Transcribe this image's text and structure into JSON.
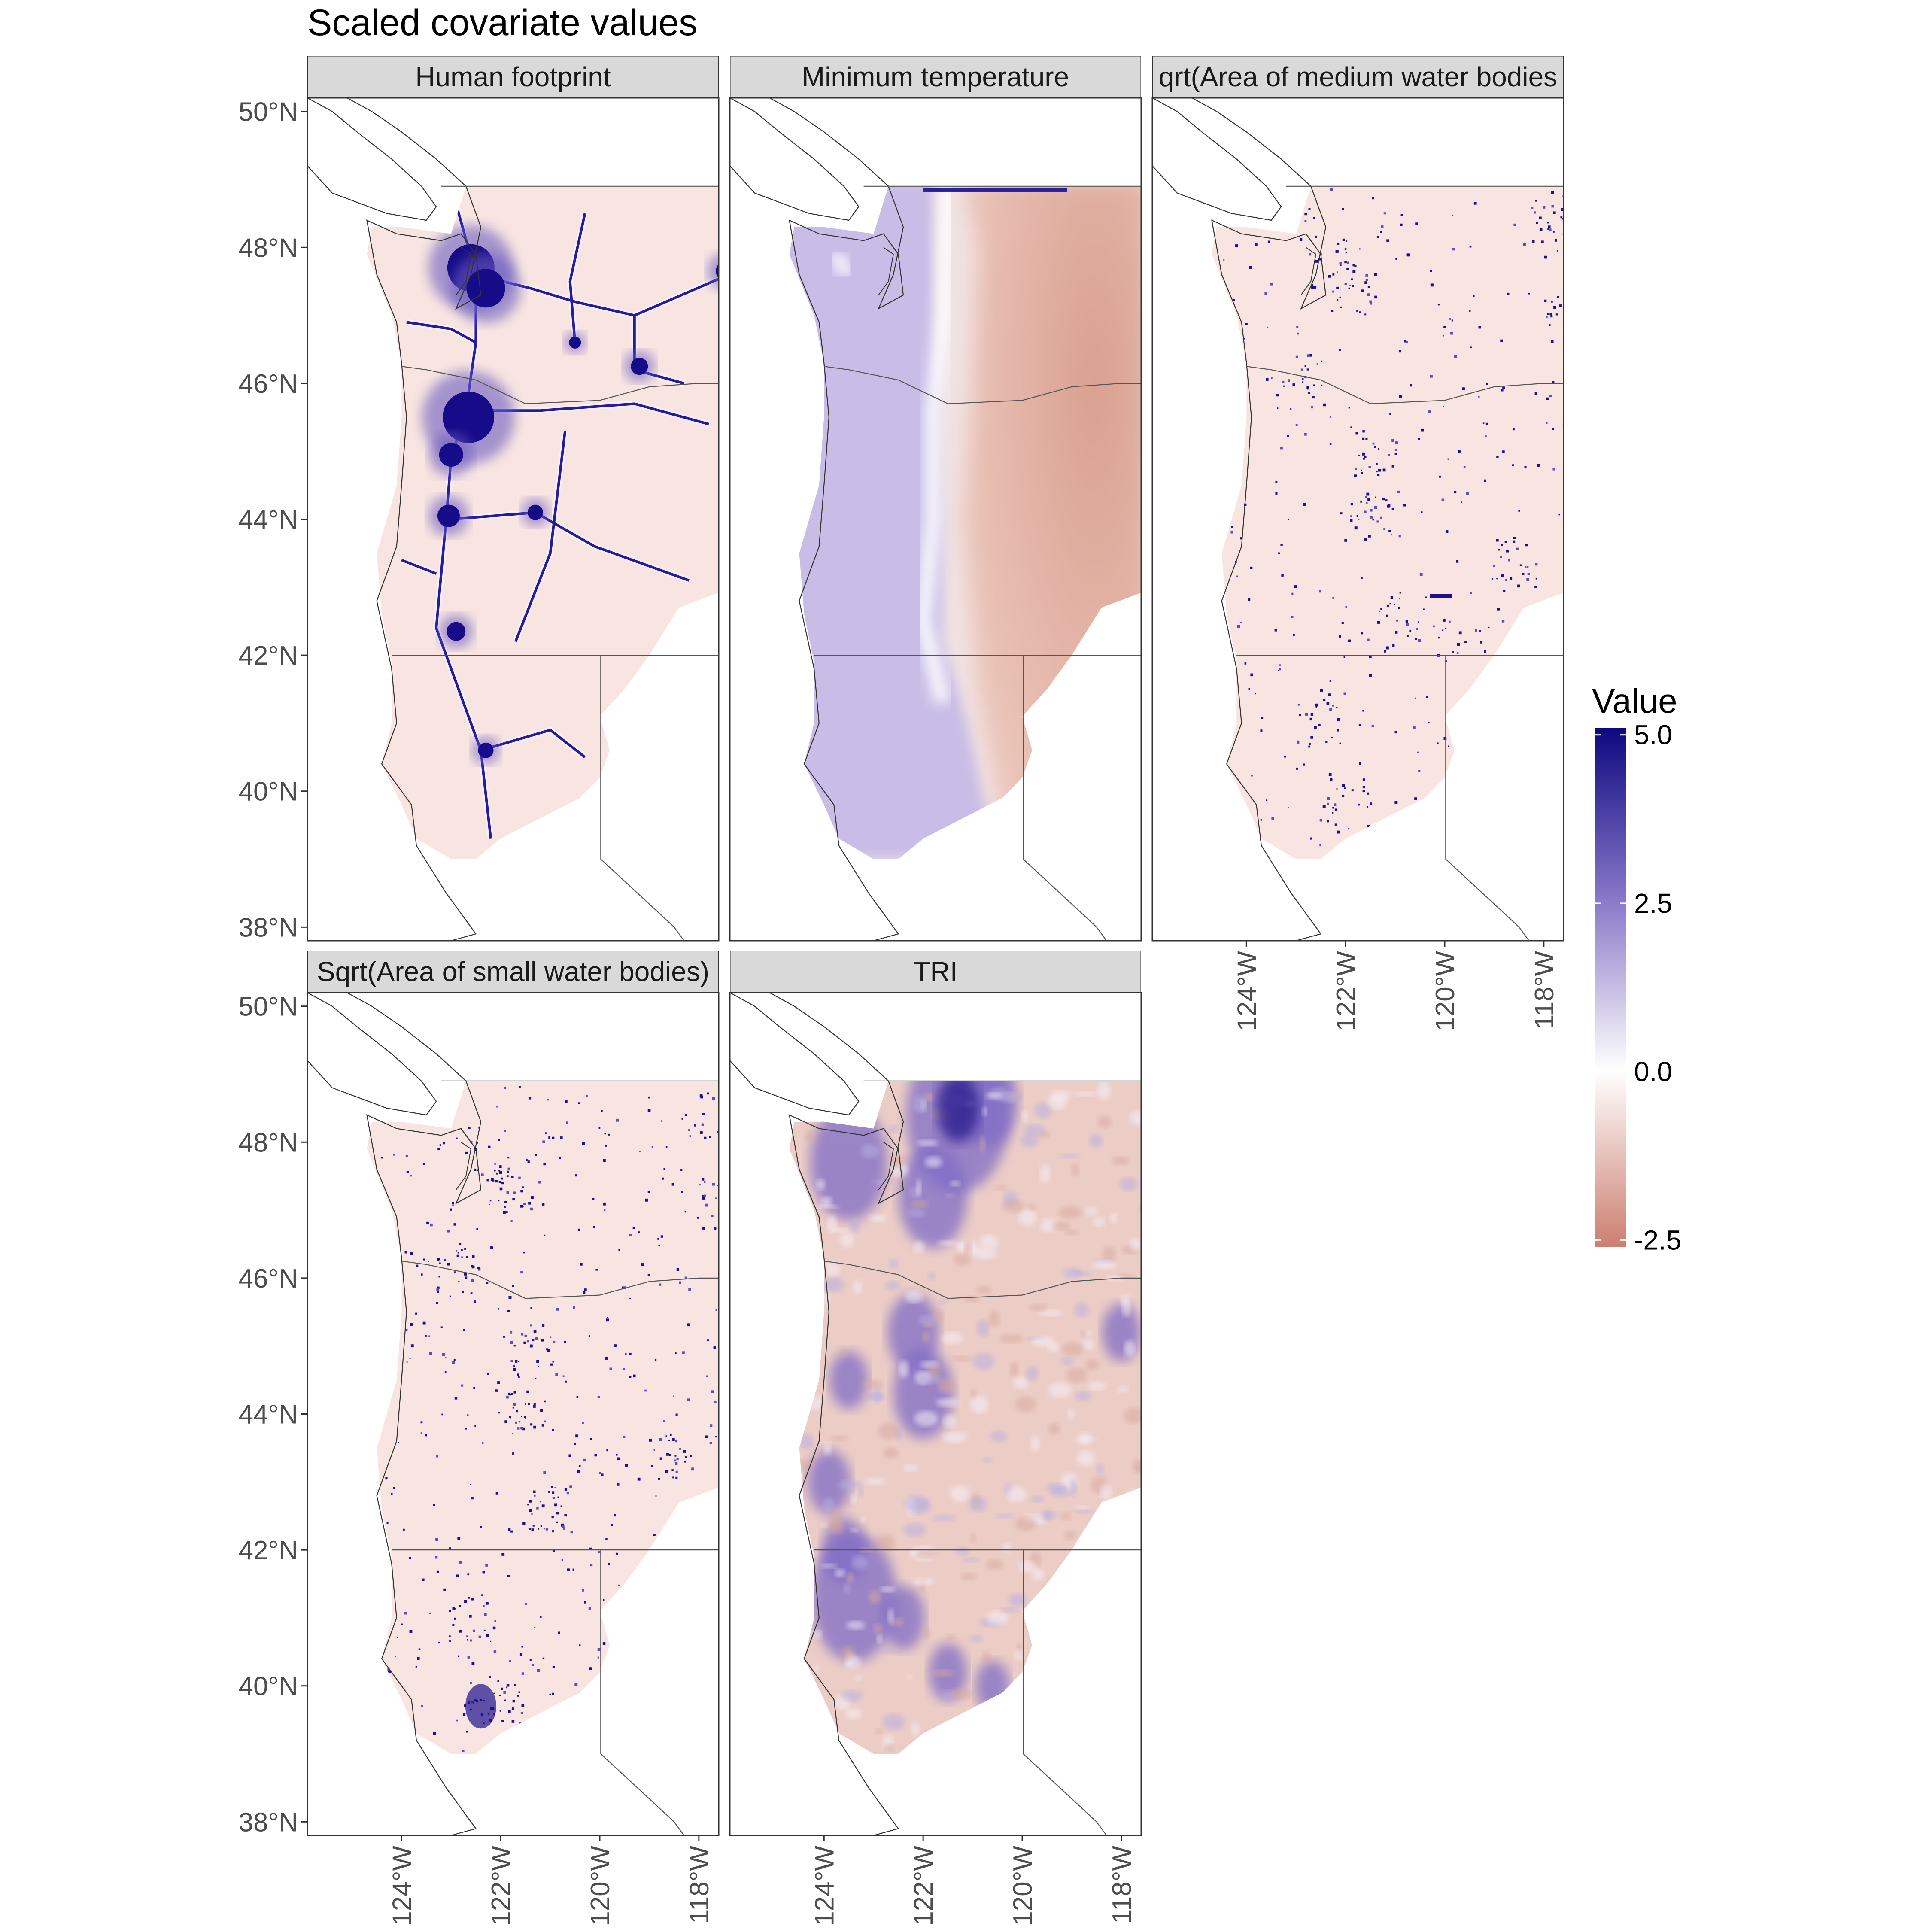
{
  "chart_data": {
    "type": "heatmap",
    "title": "Scaled covariate values",
    "panels": [
      {
        "name": "Human footprint",
        "strip_label": "Human footprint",
        "pattern": "footprint"
      },
      {
        "name": "Minimum temperature",
        "strip_label": "Minimum temperature",
        "pattern": "temperature"
      },
      {
        "name": "Sqrt(Area of medium water bodies)",
        "strip_label": "qrt(Area of medium water bodies",
        "pattern": "water_medium"
      },
      {
        "name": "Sqrt(Area of small water bodies)",
        "strip_label": "Sqrt(Area of small water bodies)",
        "pattern": "water_small"
      },
      {
        "name": "TRI",
        "strip_label": "TRI",
        "pattern": "tri"
      }
    ],
    "x_axis": {
      "ticks": [
        -124,
        -122,
        -120,
        -118
      ],
      "tick_labels": [
        "124°W",
        "122°W",
        "120°W",
        "118°W"
      ],
      "xlim": [
        -125.9,
        -117.6
      ]
    },
    "y_axis": {
      "ticks": [
        38,
        40,
        42,
        44,
        46,
        48,
        50
      ],
      "tick_labels": [
        "38°N",
        "40°N",
        "42°N",
        "44°N",
        "46°N",
        "48°N",
        "50°N"
      ],
      "ylim": [
        37.8,
        50.2
      ]
    },
    "legend": {
      "title": "Value",
      "placement": "right",
      "breaks": [
        5.0,
        2.5,
        0.0,
        -2.5
      ],
      "break_labels": [
        "5.0",
        "2.5",
        "0.0",
        "-2.5"
      ],
      "limits": [
        -2.6,
        5.1
      ],
      "colors": {
        "high": "#0d0880",
        "mid": "#ffffff",
        "low": "#cc7f70"
      }
    },
    "grid": false,
    "map_features": {
      "coastline_color": "#333333",
      "state_border_color": "#555555",
      "panel_border_color": "#333333",
      "strip_fill": "#d9d9d9"
    }
  }
}
